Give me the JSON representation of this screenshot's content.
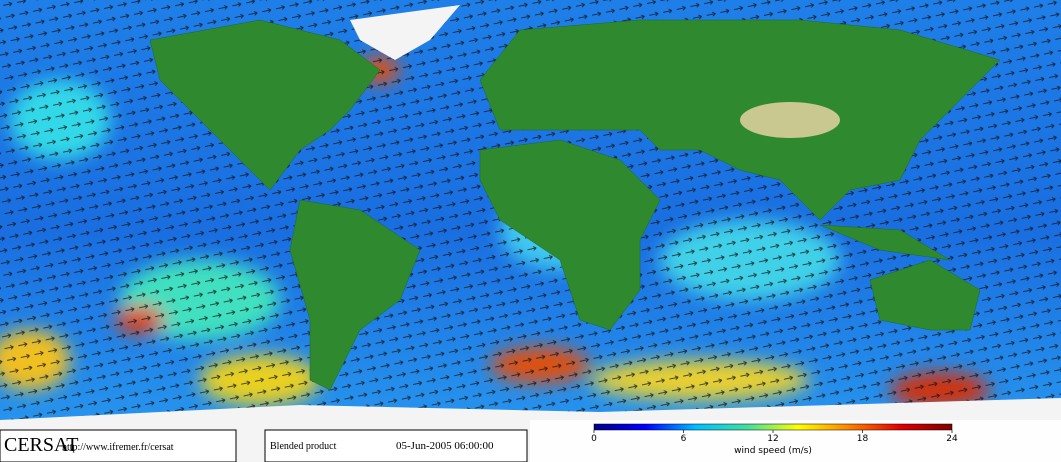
{
  "header": {
    "logo": "CERSAT",
    "url": "http://www.ifremer.fr/cersat"
  },
  "product": {
    "name": "Blended product",
    "date": "05-Jun-2005 06:00:00"
  },
  "colorbar": {
    "label": "wind speed (m/s)",
    "lim": [
      0,
      24
    ],
    "ticks": [
      0,
      6,
      12,
      18,
      24
    ],
    "colors": [
      "#00008b",
      "#0000ff",
      "#00bfff",
      "#40e0a0",
      "#ffff00",
      "#ff8000",
      "#e00000",
      "#800000"
    ]
  }
}
